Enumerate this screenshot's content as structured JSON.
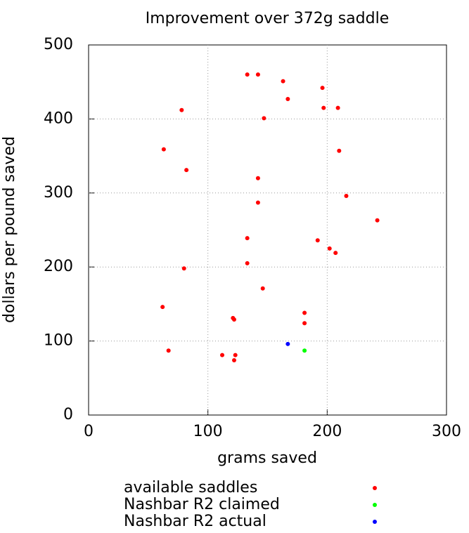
{
  "chart_data": {
    "type": "scatter",
    "title": "Improvement over 372g saddle",
    "x_label": "grams saved",
    "y_label": "dollars per pound saved",
    "xlim": [
      0,
      300
    ],
    "xticks": [
      0,
      100,
      200,
      300
    ],
    "ylim": [
      0,
      500
    ],
    "yticks": [
      0,
      100,
      200,
      300,
      400,
      500
    ],
    "grid": true,
    "legend": "bottom",
    "series": [
      {
        "name": "available saddles",
        "color": "#ff0000",
        "x": [
          133,
          142,
          163,
          196,
          167,
          197,
          209,
          78,
          147,
          63,
          210,
          82,
          142,
          142,
          216,
          242,
          133,
          192,
          202,
          207,
          133,
          80,
          146,
          62,
          181,
          121,
          122,
          181,
          67,
          112,
          123,
          122
        ],
        "values": [
          460,
          460,
          451,
          442,
          427,
          415,
          415,
          412,
          401,
          359,
          357,
          331,
          320,
          287,
          296,
          263,
          239,
          236,
          225,
          219,
          205,
          198,
          171,
          146,
          138,
          131,
          129,
          124,
          87,
          81,
          81,
          74
        ]
      },
      {
        "name": "Nashbar R2 claimed",
        "color": "#00ff00",
        "x": [
          181
        ],
        "values": [
          87
        ]
      },
      {
        "name": "Nashbar R2 actual",
        "color": "#0000ff",
        "x": [
          167
        ],
        "values": [
          96
        ]
      }
    ]
  }
}
